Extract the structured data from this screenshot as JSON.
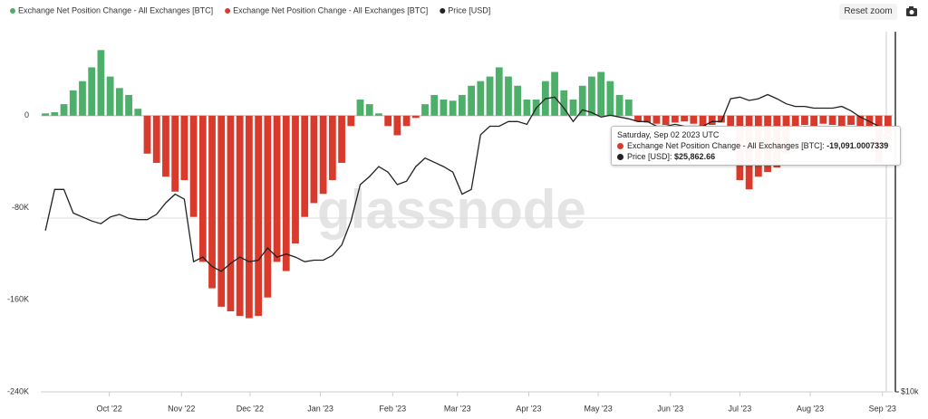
{
  "chart_data": {
    "type": "bar",
    "legend_position": "top-left",
    "reset_zoom": "Reset zoom",
    "watermark": "glassnode",
    "series": [
      {
        "name": "Exchange Net Position Change - All Exchanges [BTC]",
        "color": "#4daf6a",
        "type": "bar",
        "values": [
          2000,
          3000,
          10000,
          22000,
          30000,
          42000,
          57000,
          34000,
          24000,
          18000,
          6000,
          null,
          null,
          null,
          null,
          null,
          null,
          null,
          null,
          null,
          null,
          null,
          null,
          null,
          null,
          null,
          null,
          null,
          null,
          null,
          null,
          null,
          null,
          null,
          14000,
          10000,
          2000,
          null,
          null,
          null,
          null,
          10000,
          18000,
          14000,
          13000,
          18000,
          26000,
          30000,
          34000,
          42000,
          34000,
          26000,
          14000,
          14000,
          30000,
          38000,
          22000,
          14000,
          26000,
          34000,
          38000,
          30000,
          18000,
          14000,
          null,
          null,
          null,
          null,
          null,
          null,
          null,
          null,
          null,
          null,
          null,
          null,
          null,
          null,
          null,
          null,
          null,
          null,
          null,
          null,
          null,
          null,
          null,
          null,
          null,
          null,
          null,
          null
        ]
      },
      {
        "name": "Exchange Net Position Change - All Exchanges [BTC]",
        "color": "#d93a2b",
        "type": "bar",
        "values": [
          null,
          null,
          null,
          null,
          null,
          null,
          null,
          null,
          null,
          null,
          null,
          -33000,
          -41000,
          -53000,
          -66000,
          -56000,
          -88000,
          -127000,
          -150000,
          -166000,
          -170000,
          -174000,
          -176000,
          -174000,
          -158000,
          -127000,
          -135000,
          -111000,
          -88000,
          -76000,
          -68000,
          -56000,
          -41000,
          -9000,
          null,
          null,
          null,
          -9000,
          -17000,
          -9000,
          -2000,
          null,
          null,
          null,
          null,
          null,
          null,
          null,
          null,
          null,
          null,
          null,
          null,
          null,
          null,
          null,
          null,
          null,
          null,
          null,
          null,
          null,
          null,
          null,
          -5000,
          -6000,
          -7000,
          -8000,
          -6000,
          -5000,
          -7000,
          -9000,
          -8000,
          -6000,
          -9000,
          -56000,
          -64000,
          -53000,
          -49000,
          -45000,
          -33000,
          -9000,
          -8000,
          -9000,
          -7000,
          -8000,
          -9000,
          -8000,
          -9000,
          -9000,
          -41000,
          -19091.0007339
        ]
      },
      {
        "name": "Price [USD]",
        "color": "#222222",
        "type": "line",
        "axis": "y2",
        "values": [
          18600,
          21800,
          21800,
          19900,
          19600,
          19300,
          19100,
          19600,
          19800,
          19500,
          19400,
          19400,
          19800,
          20700,
          21400,
          21000,
          16500,
          16800,
          16200,
          15900,
          16400,
          16800,
          16500,
          16600,
          17400,
          16800,
          17000,
          16800,
          16500,
          16600,
          16600,
          16900,
          17600,
          19300,
          22200,
          22900,
          23800,
          23300,
          22200,
          22500,
          23800,
          24600,
          24200,
          23800,
          23300,
          21400,
          21800,
          26900,
          27800,
          27800,
          28300,
          28300,
          28000,
          29800,
          30900,
          31100,
          29800,
          28300,
          29600,
          29300,
          28800,
          29000,
          28800,
          28600,
          28300,
          28300,
          27800,
          27800,
          28000,
          27800,
          27800,
          27800,
          28300,
          28300,
          30900,
          31100,
          30700,
          30900,
          31400,
          30900,
          30300,
          30000,
          30000,
          29800,
          29800,
          29800,
          30000,
          29500,
          28800,
          28300,
          27800,
          25862.66
        ]
      }
    ],
    "xlim": [
      -0.5,
      91.5
    ],
    "xticks": [
      {
        "value": 6.9,
        "label": "Oct '22"
      },
      {
        "value": 14.7,
        "label": "Nov '22"
      },
      {
        "value": 22.1,
        "label": "Dec '22"
      },
      {
        "value": 29.7,
        "label": "Jan '23"
      },
      {
        "value": 37.5,
        "label": "Feb '23"
      },
      {
        "value": 44.5,
        "label": "Mar '23"
      },
      {
        "value": 52.2,
        "label": "Apr '23"
      },
      {
        "value": 59.7,
        "label": "May '23"
      },
      {
        "value": 67.5,
        "label": "Jun '23"
      },
      {
        "value": 75.0,
        "label": "Jul '23"
      },
      {
        "value": 82.6,
        "label": "Aug '23"
      },
      {
        "value": 90.4,
        "label": "Sep '23"
      }
    ],
    "ylim": [
      -240000,
      73000
    ],
    "yticks": [
      0,
      {
        "value": -80000,
        "label": "-80K"
      },
      {
        "value": -160000,
        "label": "-160K"
      },
      {
        "value": -240000,
        "label": "-240K"
      }
    ],
    "y2lim": [
      10000,
      40000
    ],
    "y2_log": true,
    "y2ticks": [
      {
        "value": 10000,
        "label": "$10k"
      }
    ],
    "tooltip": {
      "title": "Saturday, Sep 02 2023 UTC",
      "items": [
        {
          "label": "Exchange Net Position Change - All Exchanges [BTC]:",
          "value_label": "-19,091.0007339"
        },
        {
          "label": "Price [USD]:",
          "value_label": "$25,862.66"
        }
      ]
    }
  }
}
